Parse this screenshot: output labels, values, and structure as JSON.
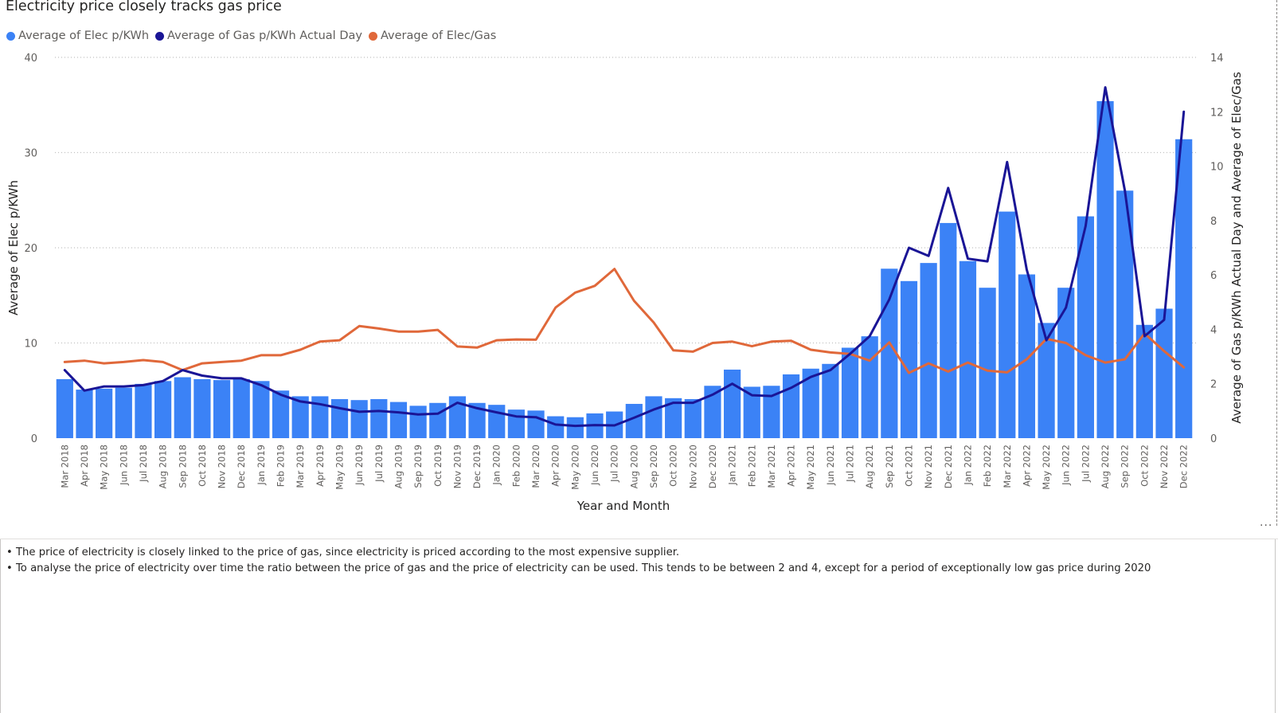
{
  "chart_data": {
    "type": "bar+line",
    "title": "Electricity price closely tracks gas price",
    "xlabel": "Year and Month",
    "ylabel_left": "Average of Elec p/KWh",
    "ylabel_right": "Average of Gas p/KWh Actual Day and Average of Elec/Gas",
    "ylim_left": [
      0,
      40
    ],
    "ylim_right": [
      0,
      14
    ],
    "yticks_left": [
      "0",
      "10",
      "20",
      "30",
      "40"
    ],
    "yticks_right": [
      "0",
      "2",
      "4",
      "6",
      "8",
      "10",
      "12",
      "14"
    ],
    "grid": true,
    "legend_position": "top-left",
    "categories": [
      "Mar 2018",
      "Apr 2018",
      "May 2018",
      "Jun 2018",
      "Jul 2018",
      "Aug 2018",
      "Sep 2018",
      "Oct 2018",
      "Nov 2018",
      "Dec 2018",
      "Jan 2019",
      "Feb 2019",
      "Mar 2019",
      "Apr 2019",
      "May 2019",
      "Jun 2019",
      "Jul 2019",
      "Aug 2019",
      "Sep 2019",
      "Oct 2019",
      "Nov 2019",
      "Dec 2019",
      "Jan 2020",
      "Feb 2020",
      "Mar 2020",
      "Apr 2020",
      "May 2020",
      "Jun 2020",
      "Jul 2020",
      "Aug 2020",
      "Sep 2020",
      "Oct 2020",
      "Nov 2020",
      "Dec 2020",
      "Jan 2021",
      "Feb 2021",
      "Mar 2021",
      "Apr 2021",
      "May 2021",
      "Jun 2021",
      "Jul 2021",
      "Aug 2021",
      "Sep 2021",
      "Oct 2021",
      "Nov 2021",
      "Dec 2021",
      "Jan 2022",
      "Feb 2022",
      "Mar 2022",
      "Apr 2022",
      "May 2022",
      "Jun 2022",
      "Jul 2022",
      "Aug 2022",
      "Sep 2022",
      "Oct 2022",
      "Nov 2022",
      "Dec 2022"
    ],
    "series": [
      {
        "name": "Average of Elec p/KWh",
        "type": "bar",
        "axis": "left",
        "color": "#3b82f6",
        "values": [
          6.2,
          5.1,
          5.2,
          5.3,
          5.7,
          6.0,
          6.4,
          6.2,
          6.1,
          6.2,
          6.0,
          5.0,
          4.4,
          4.4,
          4.1,
          4.0,
          4.1,
          3.8,
          3.4,
          3.7,
          4.4,
          3.7,
          3.5,
          3.0,
          2.9,
          2.3,
          2.2,
          2.6,
          2.8,
          3.6,
          4.4,
          4.2,
          4.1,
          5.5,
          7.2,
          5.4,
          5.5,
          6.7,
          7.3,
          7.8,
          9.5,
          10.7,
          17.8,
          16.5,
          18.4,
          22.6,
          18.6,
          15.8,
          23.8,
          17.2,
          12.1,
          15.8,
          23.3,
          35.4,
          26.0,
          11.9,
          13.6,
          31.4
        ]
      },
      {
        "name": "Average of Gas p/KWh Actual Day",
        "type": "line",
        "axis": "right",
        "color": "#1a1596",
        "values": [
          2.5,
          1.75,
          1.9,
          1.9,
          1.95,
          2.1,
          2.5,
          2.3,
          2.2,
          2.2,
          1.95,
          1.6,
          1.35,
          1.25,
          1.1,
          0.97,
          1.0,
          0.95,
          0.87,
          0.9,
          1.3,
          1.1,
          0.95,
          0.8,
          0.77,
          0.5,
          0.45,
          0.48,
          0.47,
          0.75,
          1.05,
          1.3,
          1.3,
          1.6,
          2.0,
          1.58,
          1.55,
          1.85,
          2.25,
          2.5,
          3.1,
          3.75,
          5.1,
          7.0,
          6.7,
          9.2,
          6.6,
          6.5,
          10.15,
          6.2,
          3.6,
          4.8,
          7.8,
          12.9,
          9.1,
          3.75,
          4.35,
          12.0
        ]
      },
      {
        "name": "Average of Elec/Gas",
        "type": "line",
        "axis": "right",
        "color": "#e0683a",
        "values": [
          2.8,
          2.85,
          2.75,
          2.8,
          2.87,
          2.8,
          2.5,
          2.75,
          2.8,
          2.85,
          3.05,
          3.05,
          3.25,
          3.55,
          3.6,
          4.12,
          4.03,
          3.92,
          3.92,
          3.98,
          3.37,
          3.33,
          3.6,
          3.63,
          3.62,
          4.8,
          5.35,
          5.6,
          6.22,
          5.05,
          4.25,
          3.23,
          3.18,
          3.5,
          3.55,
          3.38,
          3.55,
          3.58,
          3.25,
          3.15,
          3.1,
          2.85,
          3.52,
          2.4,
          2.75,
          2.45,
          2.78,
          2.48,
          2.42,
          2.9,
          3.65,
          3.5,
          3.05,
          2.78,
          2.9,
          3.85,
          3.2,
          2.6
        ]
      }
    ]
  },
  "notes": [
    "The price of electricity is closely linked to the price of gas, since electricity is priced according to the most expensive supplier.",
    "To analyse the price of electricity over time the ratio between the price of gas and the price of electricity can be used. This tends to be between 2 and 4, except for a period of exceptionally low gas price during 2020"
  ],
  "more_options": "..."
}
